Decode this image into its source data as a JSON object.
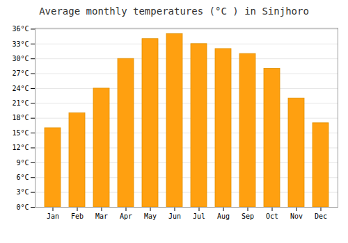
{
  "chart_data": {
    "type": "bar",
    "title": "Average monthly temperatures (°C ) in Sinjhoro",
    "categories": [
      "Jan",
      "Feb",
      "Mar",
      "Apr",
      "May",
      "Jun",
      "Jul",
      "Aug",
      "Sep",
      "Oct",
      "Nov",
      "Dec"
    ],
    "values": [
      16,
      19,
      24,
      30,
      34,
      35,
      33,
      32,
      31,
      28,
      22,
      17
    ],
    "color": "#FFA010",
    "ylim": [
      0,
      36.2
    ],
    "yticks": [
      {
        "value": 0,
        "label": "0°C"
      },
      {
        "value": 3,
        "label": "3°C"
      },
      {
        "value": 6,
        "label": "6°C"
      },
      {
        "value": 9,
        "label": "9°C"
      },
      {
        "value": 12,
        "label": "12°C"
      },
      {
        "value": 15,
        "label": "15°C"
      },
      {
        "value": 18,
        "label": "18°C"
      },
      {
        "value": 21,
        "label": "21°C"
      },
      {
        "value": 24,
        "label": "24°C"
      },
      {
        "value": 27,
        "label": "27°C"
      },
      {
        "value": 30,
        "label": "30°C"
      },
      {
        "value": 33,
        "label": "33°C"
      },
      {
        "value": 36,
        "label": "36°C"
      }
    ],
    "grid": true
  }
}
